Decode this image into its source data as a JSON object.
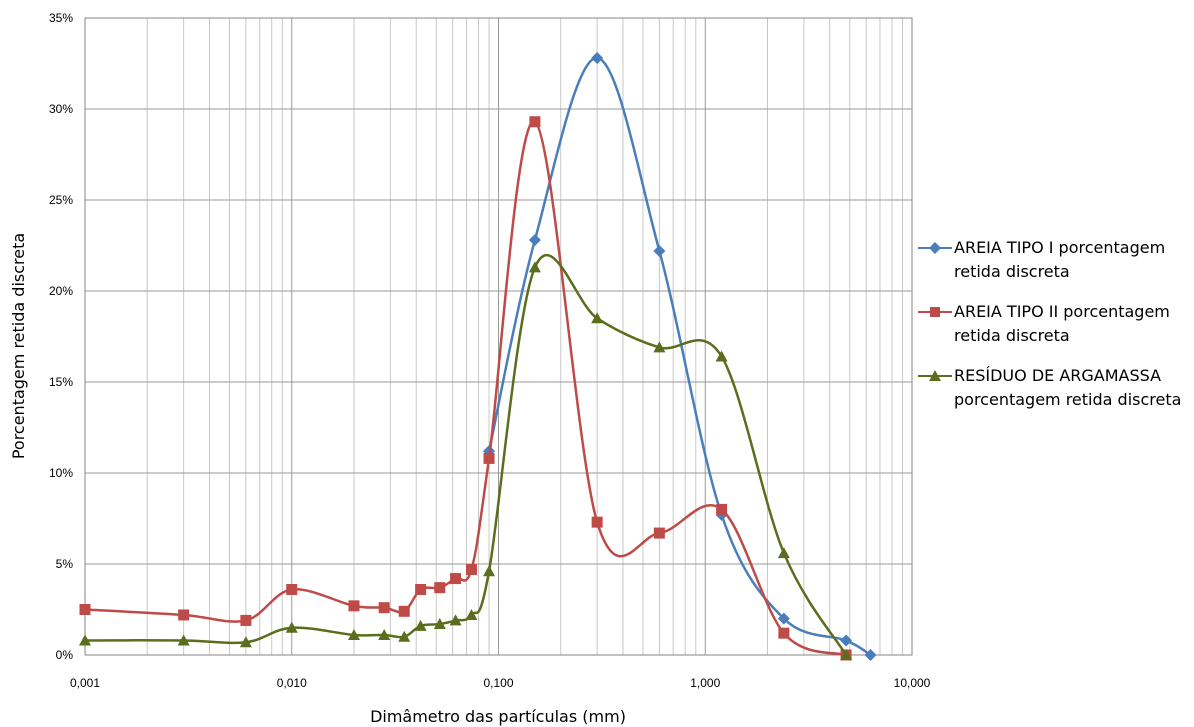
{
  "chart_data": {
    "type": "line",
    "xlabel": "Dimâmetro das partículas (mm)",
    "ylabel": "Porcentagem retida discreta",
    "x_scale": "log",
    "xlim": [
      0.001,
      10
    ],
    "ylim": [
      0,
      35
    ],
    "x_ticks": [
      "0,001",
      "0,010",
      "0,100",
      "1,000",
      "10,000"
    ],
    "y_ticks": [
      "0%",
      "5%",
      "10%",
      "15%",
      "20%",
      "25%",
      "30%",
      "35%"
    ],
    "grid": true,
    "legend_position": "right",
    "series": [
      {
        "name": "AREIA TIPO I porcentagem retida discreta",
        "color": "#4a7ebb",
        "marker": "diamond",
        "x": [
          0.09,
          0.15,
          0.3,
          0.6,
          1.2,
          2.4,
          4.8,
          6.3
        ],
        "y": [
          11.2,
          22.8,
          32.8,
          22.2,
          7.7,
          2.0,
          0.8,
          0.0
        ]
      },
      {
        "name": "AREIA TIPO II porcentagem retida discreta",
        "color": "#be4b48",
        "marker": "square",
        "x": [
          0.001,
          0.003,
          0.006,
          0.01,
          0.02,
          0.028,
          0.035,
          0.042,
          0.052,
          0.062,
          0.074,
          0.09,
          0.15,
          0.3,
          0.6,
          1.2,
          2.4,
          4.8
        ],
        "y": [
          2.5,
          2.2,
          1.9,
          3.6,
          2.7,
          2.6,
          2.4,
          3.6,
          3.7,
          4.2,
          4.7,
          10.8,
          29.3,
          7.3,
          6.7,
          8.0,
          1.2,
          0.0
        ]
      },
      {
        "name": "RESÍDUO DE ARGAMASSA porcentagem retida discreta",
        "color": "#5a6e1e",
        "marker": "triangle",
        "x": [
          0.001,
          0.003,
          0.006,
          0.01,
          0.02,
          0.028,
          0.035,
          0.042,
          0.052,
          0.062,
          0.074,
          0.09,
          0.15,
          0.3,
          0.6,
          1.2,
          2.4,
          4.8
        ],
        "y": [
          0.8,
          0.8,
          0.7,
          1.5,
          1.1,
          1.1,
          1.0,
          1.6,
          1.7,
          1.9,
          2.2,
          4.6,
          21.3,
          18.5,
          16.9,
          16.4,
          5.6,
          0.0
        ]
      }
    ]
  }
}
